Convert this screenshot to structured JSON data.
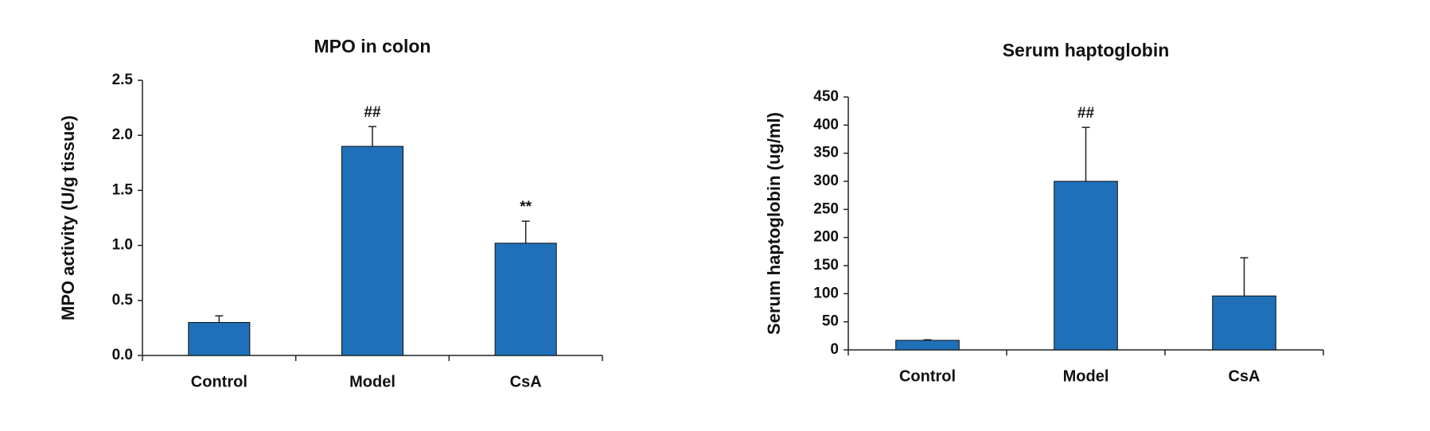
{
  "chart_data": [
    {
      "type": "bar",
      "title": "MPO in colon",
      "y_label": "MPO activity (U/g tissue)",
      "categories": [
        "Control",
        "Model",
        "CsA"
      ],
      "values": [
        0.3,
        1.9,
        1.02
      ],
      "errors": [
        0.06,
        0.18,
        0.2
      ],
      "annotations": [
        null,
        "##",
        "**"
      ],
      "color": "#1f70b8",
      "ylim": [
        0,
        2.5
      ],
      "yticks": [
        {
          "value": 0,
          "label": "0.0"
        },
        0.5,
        {
          "value": 1,
          "label": "1.0"
        },
        1.5,
        {
          "value": 2,
          "label": "2.0"
        },
        2.5
      ]
    },
    {
      "type": "bar",
      "title": "Serum haptoglobin",
      "y_label": "Serum haptoglobin (ug/ml)",
      "categories": [
        "Control",
        "Model",
        "CsA"
      ],
      "values": [
        17,
        300,
        96
      ],
      "errors": [
        1,
        96,
        68
      ],
      "annotations": [
        null,
        "##",
        null
      ],
      "color": "#1f70b8",
      "ylim": [
        0,
        450
      ],
      "yticks": [
        0,
        50,
        100,
        150,
        200,
        250,
        300,
        350,
        400,
        450
      ]
    }
  ]
}
